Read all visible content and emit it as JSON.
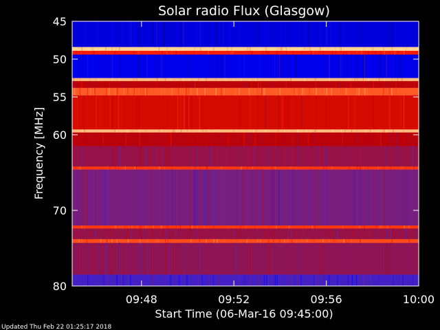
{
  "chart_data": {
    "type": "heatmap",
    "title": "Solar radio Flux (Glasgow)",
    "xlabel": "Start Time (06-Mar-16 09:45:00)",
    "ylabel": "Frequency [MHz]",
    "x_range": [
      "09:45",
      "10:00"
    ],
    "ylim": [
      45,
      80
    ],
    "y_axis_direction": "top-to-bottom",
    "x_ticks": [
      {
        "value": "09:48",
        "label": "09:48"
      },
      {
        "value": "09:52",
        "label": "09:52"
      },
      {
        "value": "09:56",
        "label": "09:56"
      },
      {
        "value": "10:00",
        "label": "10:00"
      }
    ],
    "y_ticks": [
      {
        "value": 45,
        "label": "45"
      },
      {
        "value": 50,
        "label": "50"
      },
      {
        "value": 55,
        "label": "55"
      },
      {
        "value": 60,
        "label": "60"
      },
      {
        "value": 70,
        "label": "70"
      },
      {
        "value": 80,
        "label": "80"
      }
    ],
    "colormap": [
      "#000090",
      "#0000ff",
      "#5a2ab0",
      "#9a1040",
      "#c00000",
      "#ff2000",
      "#ff8040",
      "#ffe0a0"
    ],
    "bands": [
      {
        "from_mhz": 45.0,
        "to_mhz": 48.4,
        "intensity": 0.1
      },
      {
        "from_mhz": 48.4,
        "to_mhz": 48.9,
        "intensity": 0.98
      },
      {
        "from_mhz": 48.9,
        "to_mhz": 49.4,
        "intensity": 0.7
      },
      {
        "from_mhz": 49.4,
        "to_mhz": 52.5,
        "intensity": 0.12
      },
      {
        "from_mhz": 52.5,
        "to_mhz": 52.9,
        "intensity": 0.95
      },
      {
        "from_mhz": 52.9,
        "to_mhz": 53.8,
        "intensity": 0.55
      },
      {
        "from_mhz": 53.8,
        "to_mhz": 54.8,
        "intensity": 0.8
      },
      {
        "from_mhz": 54.8,
        "to_mhz": 59.3,
        "intensity": 0.62
      },
      {
        "from_mhz": 59.3,
        "to_mhz": 59.7,
        "intensity": 0.95
      },
      {
        "from_mhz": 59.7,
        "to_mhz": 61.5,
        "intensity": 0.55
      },
      {
        "from_mhz": 61.5,
        "to_mhz": 64.2,
        "intensity": 0.42
      },
      {
        "from_mhz": 64.2,
        "to_mhz": 64.6,
        "intensity": 0.75
      },
      {
        "from_mhz": 64.6,
        "to_mhz": 72.0,
        "intensity": 0.35
      },
      {
        "from_mhz": 72.0,
        "to_mhz": 72.4,
        "intensity": 0.75
      },
      {
        "from_mhz": 72.4,
        "to_mhz": 73.8,
        "intensity": 0.42
      },
      {
        "from_mhz": 73.8,
        "to_mhz": 74.3,
        "intensity": 0.78
      },
      {
        "from_mhz": 74.3,
        "to_mhz": 78.5,
        "intensity": 0.4
      },
      {
        "from_mhz": 78.5,
        "to_mhz": 80.0,
        "intensity": 0.25
      }
    ],
    "grid": false,
    "legend": "none"
  },
  "footer": {
    "updated": "Updated Thu Feb 22 01:25:17 2018"
  }
}
